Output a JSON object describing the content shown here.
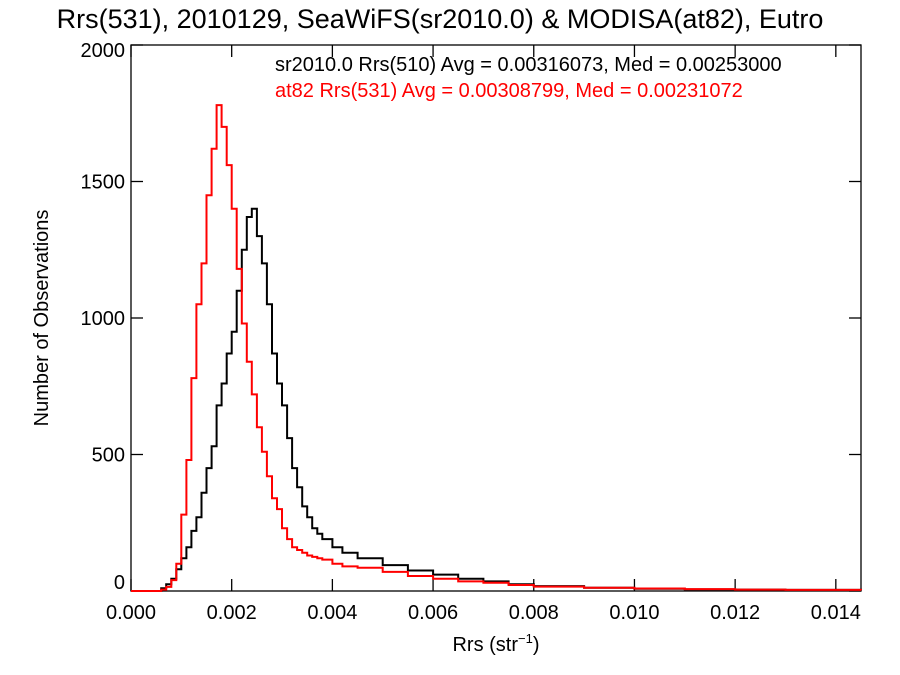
{
  "chart_data": {
    "type": "line",
    "title": "Rrs(531), 2010129, SeaWiFS(sr2010.0) & MODISA(at82), Eutro",
    "xlabel": "Rrs (str",
    "xlabel_sup": "−1",
    "xlabel_close": ")",
    "ylabel": "Number of Observations",
    "xlim": [
      0.0,
      0.0145
    ],
    "ylim": [
      0,
      2000
    ],
    "xticks": [
      0.0,
      0.002,
      0.004,
      0.006,
      0.008,
      0.01,
      0.012,
      0.014
    ],
    "xtick_labels": [
      "0.000",
      "0.002",
      "0.004",
      "0.006",
      "0.008",
      "0.010",
      "0.012",
      "0.014"
    ],
    "yticks": [
      0,
      500,
      1000,
      1500,
      2000
    ],
    "ytick_labels": [
      "0",
      "500",
      "1000",
      "1500",
      "2000"
    ],
    "grid": false,
    "legend_position": "top-right",
    "annotations": [
      "sr2010.0 Rrs(510) Avg = 0.00316073, Med = 0.00253000",
      "at82 Rrs(531) Avg = 0.00308799, Med = 0.00231072"
    ],
    "series": [
      {
        "name": "sr2010.0 Rrs(510)",
        "color": "#000000",
        "step": "histogram",
        "x": [
          0.0,
          0.0005,
          0.0006,
          0.0007,
          0.0008,
          0.0009,
          0.001,
          0.0011,
          0.0012,
          0.0013,
          0.0014,
          0.0015,
          0.0016,
          0.0017,
          0.0018,
          0.0019,
          0.002,
          0.0021,
          0.0022,
          0.0023,
          0.0024,
          0.0025,
          0.0026,
          0.0027,
          0.0028,
          0.0029,
          0.003,
          0.0031,
          0.0032,
          0.0033,
          0.0034,
          0.0035,
          0.0036,
          0.0037,
          0.0038,
          0.004,
          0.0042,
          0.0045,
          0.005,
          0.0055,
          0.006,
          0.0065,
          0.007,
          0.0075,
          0.008,
          0.009,
          0.01,
          0.011,
          0.012,
          0.013,
          0.0145
        ],
        "y": [
          0,
          0,
          10,
          25,
          45,
          80,
          120,
          160,
          220,
          270,
          360,
          450,
          530,
          680,
          760,
          870,
          950,
          1100,
          1250,
          1370,
          1400,
          1300,
          1200,
          1050,
          870,
          760,
          680,
          560,
          450,
          380,
          310,
          270,
          230,
          210,
          190,
          160,
          140,
          120,
          95,
          75,
          60,
          45,
          35,
          25,
          18,
          12,
          8,
          6,
          5,
          4,
          3
        ]
      },
      {
        "name": "at82 Rrs(531)",
        "color": "#ff0000",
        "step": "histogram",
        "x": [
          0.0,
          0.0005,
          0.0006,
          0.0007,
          0.0008,
          0.0009,
          0.001,
          0.0011,
          0.0012,
          0.0013,
          0.0014,
          0.0015,
          0.0016,
          0.0017,
          0.0018,
          0.0019,
          0.002,
          0.0021,
          0.0022,
          0.0023,
          0.0024,
          0.0025,
          0.0026,
          0.0027,
          0.0028,
          0.0029,
          0.003,
          0.0031,
          0.0032,
          0.0033,
          0.0034,
          0.0035,
          0.0036,
          0.0037,
          0.0038,
          0.004,
          0.0042,
          0.0045,
          0.005,
          0.0055,
          0.006,
          0.0065,
          0.007,
          0.0075,
          0.008,
          0.009,
          0.01,
          0.011,
          0.012,
          0.013,
          0.0145
        ],
        "y": [
          0,
          0,
          5,
          15,
          40,
          100,
          280,
          480,
          780,
          1050,
          1200,
          1450,
          1620,
          1780,
          1700,
          1560,
          1400,
          1180,
          980,
          840,
          720,
          600,
          510,
          420,
          340,
          300,
          230,
          190,
          160,
          150,
          140,
          130,
          125,
          120,
          115,
          100,
          90,
          85,
          70,
          55,
          45,
          35,
          30,
          22,
          16,
          12,
          9,
          7,
          5,
          4,
          3
        ]
      }
    ]
  }
}
